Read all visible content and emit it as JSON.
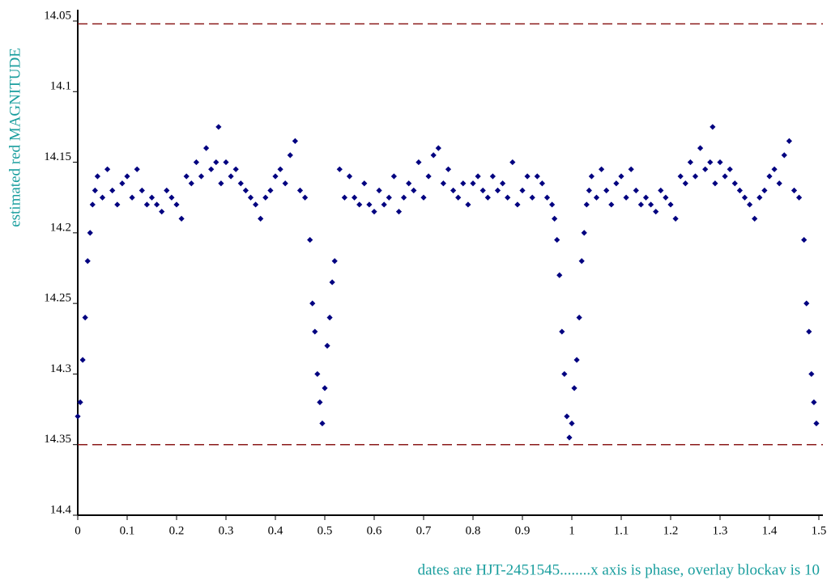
{
  "chart_data": {
    "type": "scatter",
    "y_label": "estimated red MAGNITUDE",
    "footnote": "dates are HJT-2451545........x axis is phase, overlay blockav is 10",
    "xlim": [
      0,
      1.5
    ],
    "ylim": [
      14.4,
      14.05
    ],
    "xticks": [
      0,
      0.1,
      0.2,
      0.3,
      0.4,
      0.5,
      0.6,
      0.7,
      0.8,
      0.9,
      1,
      1.1,
      1.2,
      1.3,
      1.4,
      1.5
    ],
    "yticks": [
      14.05,
      14.1,
      14.15,
      14.2,
      14.25,
      14.3,
      14.35,
      14.4
    ],
    "hlines": [
      14.052,
      14.35
    ],
    "hline_color": "#8b1a1a",
    "color": "#000080",
    "x": [
      0,
      0.005,
      0.01,
      0.015,
      0.02,
      0.025,
      0.03,
      0.035,
      0.04,
      0.05,
      0.06,
      0.07,
      0.08,
      0.09,
      0.1,
      0.11,
      0.12,
      0.13,
      0.14,
      0.15,
      0.16,
      0.17,
      0.18,
      0.19,
      0.2,
      0.21,
      0.22,
      0.23,
      0.24,
      0.25,
      0.26,
      0.27,
      0.28,
      0.285,
      0.29,
      0.3,
      0.31,
      0.32,
      0.33,
      0.34,
      0.35,
      0.36,
      0.37,
      0.38,
      0.39,
      0.4,
      0.41,
      0.42,
      0.43,
      0.44,
      0.45,
      0.46,
      0.47,
      0.475,
      0.48,
      0.485,
      0.49,
      0.495,
      0.5,
      0.505,
      0.51,
      0.515,
      0.52,
      0.53,
      0.54,
      0.55,
      0.56,
      0.57,
      0.58,
      0.59,
      0.6,
      0.61,
      0.62,
      0.63,
      0.64,
      0.65,
      0.66,
      0.67,
      0.68,
      0.69,
      0.7,
      0.71,
      0.72,
      0.73,
      0.74,
      0.75,
      0.76,
      0.77,
      0.78,
      0.79,
      0.8,
      0.81,
      0.82,
      0.83,
      0.84,
      0.85,
      0.86,
      0.87,
      0.88,
      0.89,
      0.9,
      0.91,
      0.92,
      0.93,
      0.94,
      0.95,
      0.96,
      0.965,
      0.97,
      0.975,
      0.98,
      0.985,
      0.99,
      0.995,
      1,
      1.005,
      1.01,
      1.015,
      1.02,
      1.025,
      1.03,
      1.035,
      1.04,
      1.05,
      1.06,
      1.07,
      1.08,
      1.09,
      1.1,
      1.11,
      1.12,
      1.13,
      1.14,
      1.15,
      1.16,
      1.17,
      1.18,
      1.19,
      1.2,
      1.21,
      1.22,
      1.23,
      1.24,
      1.25,
      1.26,
      1.27,
      1.28,
      1.285,
      1.29,
      1.3,
      1.31,
      1.32,
      1.33,
      1.34,
      1.35,
      1.36,
      1.37,
      1.38,
      1.39,
      1.4,
      1.41,
      1.42,
      1.43,
      1.44,
      1.45,
      1.46,
      1.47,
      1.475,
      1.48,
      1.485,
      1.49,
      1.495
    ],
    "values": [
      14.33,
      14.32,
      14.29,
      14.26,
      14.22,
      14.2,
      14.18,
      14.17,
      14.16,
      14.175,
      14.155,
      14.17,
      14.18,
      14.165,
      14.16,
      14.175,
      14.155,
      14.17,
      14.18,
      14.175,
      14.18,
      14.185,
      14.17,
      14.175,
      14.18,
      14.19,
      14.16,
      14.165,
      14.15,
      14.16,
      14.14,
      14.155,
      14.15,
      14.125,
      14.165,
      14.15,
      14.16,
      14.155,
      14.165,
      14.17,
      14.175,
      14.18,
      14.19,
      14.175,
      14.17,
      14.16,
      14.155,
      14.165,
      14.145,
      14.135,
      14.17,
      14.175,
      14.205,
      14.25,
      14.27,
      14.3,
      14.32,
      14.335,
      14.31,
      14.28,
      14.26,
      14.235,
      14.22,
      14.155,
      14.175,
      14.16,
      14.175,
      14.18,
      14.165,
      14.18,
      14.185,
      14.17,
      14.18,
      14.175,
      14.16,
      14.185,
      14.175,
      14.165,
      14.17,
      14.15,
      14.175,
      14.16,
      14.145,
      14.14,
      14.165,
      14.155,
      14.17,
      14.175,
      14.165,
      14.18,
      14.165,
      14.16,
      14.17,
      14.175,
      14.16,
      14.17,
      14.165,
      14.175,
      14.15,
      14.18,
      14.17,
      14.16,
      14.175,
      14.16,
      14.165,
      14.175,
      14.18,
      14.19,
      14.205,
      14.23,
      14.27,
      14.3,
      14.33,
      14.345,
      14.335,
      14.31,
      14.29,
      14.26,
      14.22,
      14.2,
      14.18,
      14.17,
      14.16,
      14.175,
      14.155,
      14.17,
      14.18,
      14.165,
      14.16,
      14.175,
      14.155,
      14.17,
      14.18,
      14.175,
      14.18,
      14.185,
      14.17,
      14.175,
      14.18,
      14.19,
      14.16,
      14.165,
      14.15,
      14.16,
      14.14,
      14.155,
      14.15,
      14.125,
      14.165,
      14.15,
      14.16,
      14.155,
      14.165,
      14.17,
      14.175,
      14.18,
      14.19,
      14.175,
      14.17,
      14.16,
      14.155,
      14.165,
      14.145,
      14.135,
      14.17,
      14.175,
      14.205,
      14.25,
      14.27,
      14.3,
      14.32,
      14.335
    ]
  }
}
